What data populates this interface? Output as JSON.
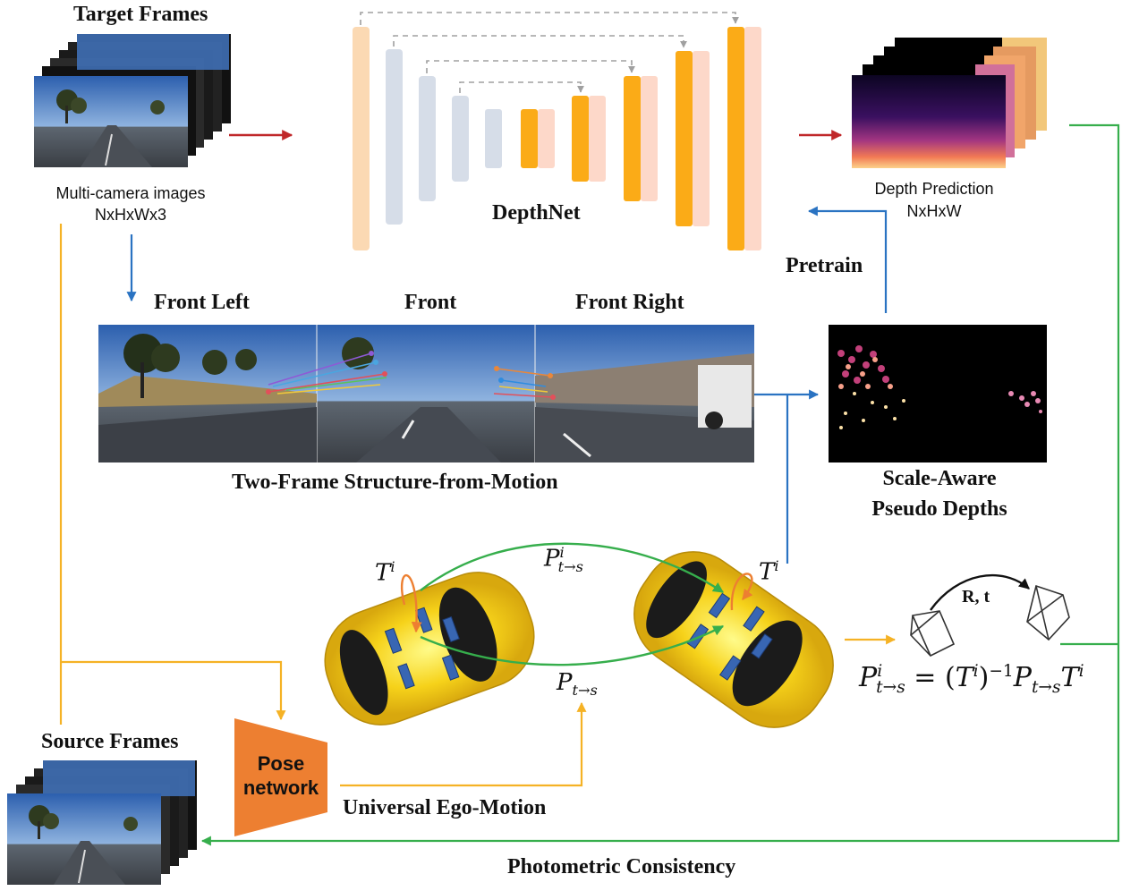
{
  "labels": {
    "target_frames": "Target Frames",
    "multi_camera": "Multi-camera images",
    "multi_camera_shape": "NxHxWx3",
    "depthnet": "DepthNet",
    "depth_prediction": "Depth Prediction",
    "depth_shape": "NxHxW",
    "pretrain": "Pretrain",
    "front_left": "Front Left",
    "front": "Front",
    "front_right": "Front Right",
    "two_frame_sfm": "Two-Frame Structure-from-Motion",
    "scale_aware_1": "Scale-Aware",
    "scale_aware_2": "Pseudo Depths",
    "source_frames": "Source Frames",
    "pose_1": "Pose",
    "pose_2": "network",
    "universal_ego_motion": "Universal Ego-Motion",
    "photometric_consistency": "Photometric Consistency",
    "rt": "R, t"
  },
  "math": {
    "T": "T",
    "i": "i",
    "P": "P",
    "sub_ts": "t→s",
    "eq_equals": " = (",
    "eq_inv": ")",
    "eq_minus1": "−1"
  },
  "colors": {
    "red_arrow": "#c0282a",
    "blue_arrow": "#2a73c2",
    "yellow_arrow": "#f5b225",
    "green_arrow": "#36ae4c",
    "encoder_peach": "#fbd9b3",
    "encoder_gray": "#d6dde8",
    "decoder_orange": "#fbab17",
    "decoder_pink": "#fdd8c9",
    "pose_orange": "#ed7f31",
    "car_yellow": "#f6d21a"
  }
}
